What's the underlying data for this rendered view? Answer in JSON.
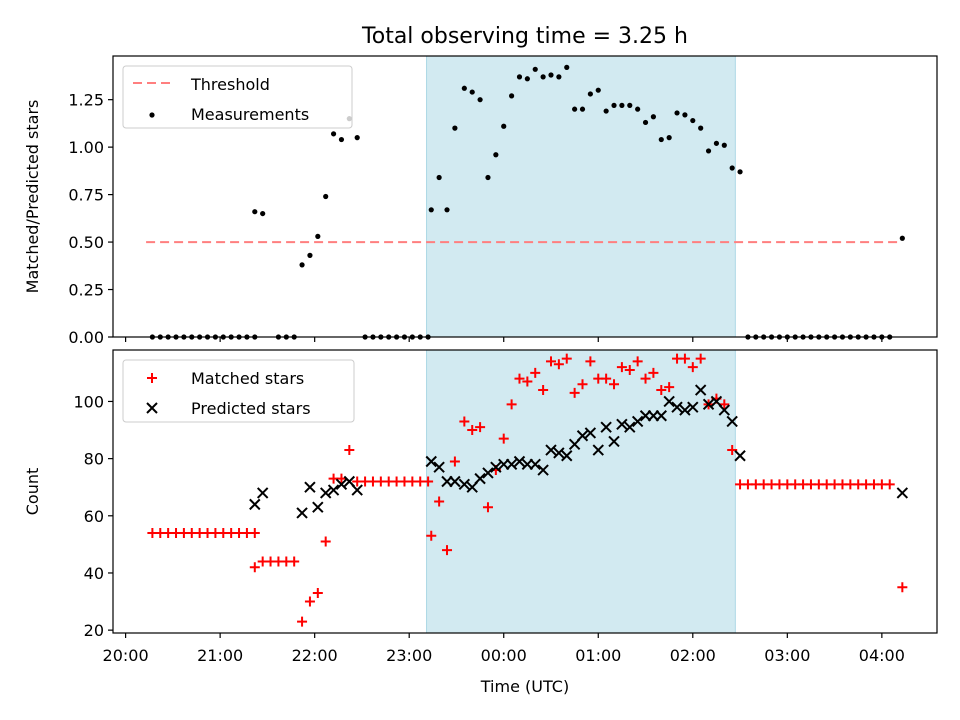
{
  "title": "Total observing time = 3.25 h",
  "chart_data": [
    {
      "type": "scatter",
      "ylabel": "Matched/Predicted stars",
      "xlim": [
        "20:00",
        "04:30"
      ],
      "ylim": [
        0,
        1.48
      ],
      "yticks": [
        0.0,
        0.25,
        0.5,
        0.75,
        1.0,
        1.25
      ],
      "ytick_labels": [
        "0.00",
        "0.25",
        "0.50",
        "0.75",
        "1.00",
        "1.25"
      ],
      "shaded_span": {
        "start": "23:11",
        "end": "02:27",
        "color": "#add8e6"
      },
      "legend": {
        "position": "upper-left",
        "entries": [
          "Threshold",
          "Measurements"
        ]
      },
      "series": [
        {
          "name": "Threshold",
          "style": "dashed-line",
          "color": "#ff7f7f",
          "y": 0.5,
          "x_range": [
            "20:13",
            "04:10"
          ]
        },
        {
          "name": "Measurements",
          "style": "dots",
          "color": "#000000",
          "points": [
            [
              "20:17",
              0
            ],
            [
              "20:22",
              0
            ],
            [
              "20:27",
              0
            ],
            [
              "20:32",
              0
            ],
            [
              "20:37",
              0
            ],
            [
              "20:42",
              0
            ],
            [
              "20:47",
              0
            ],
            [
              "20:52",
              0
            ],
            [
              "20:57",
              0
            ],
            [
              "21:02",
              0
            ],
            [
              "21:07",
              0
            ],
            [
              "21:12",
              0
            ],
            [
              "21:17",
              0
            ],
            [
              "21:22",
              0
            ],
            [
              "21:22",
              0.66
            ],
            [
              "21:27",
              0.65
            ],
            [
              "21:37",
              0
            ],
            [
              "21:42",
              0
            ],
            [
              "21:47",
              0
            ],
            [
              "21:52",
              0.38
            ],
            [
              "21:57",
              0.43
            ],
            [
              "22:02",
              0.53
            ],
            [
              "22:07",
              0.74
            ],
            [
              "22:12",
              1.07
            ],
            [
              "22:17",
              1.04
            ],
            [
              "22:22",
              1.15
            ],
            [
              "22:27",
              1.05
            ],
            [
              "22:32",
              0
            ],
            [
              "22:37",
              0
            ],
            [
              "22:42",
              0
            ],
            [
              "22:47",
              0
            ],
            [
              "22:52",
              0
            ],
            [
              "22:57",
              0
            ],
            [
              "23:02",
              0
            ],
            [
              "23:07",
              0
            ],
            [
              "23:12",
              0
            ],
            [
              "23:14",
              0.67
            ],
            [
              "23:19",
              0.84
            ],
            [
              "23:24",
              0.67
            ],
            [
              "23:29",
              1.1
            ],
            [
              "23:35",
              1.31
            ],
            [
              "23:40",
              1.29
            ],
            [
              "23:45",
              1.25
            ],
            [
              "23:50",
              0.84
            ],
            [
              "23:55",
              0.96
            ],
            [
              "00:00",
              1.11
            ],
            [
              "00:05",
              1.27
            ],
            [
              "00:10",
              1.37
            ],
            [
              "00:15",
              1.36
            ],
            [
              "00:20",
              1.41
            ],
            [
              "00:25",
              1.37
            ],
            [
              "00:30",
              1.38
            ],
            [
              "00:35",
              1.37
            ],
            [
              "00:40",
              1.42
            ],
            [
              "00:45",
              1.2
            ],
            [
              "00:50",
              1.2
            ],
            [
              "00:55",
              1.28
            ],
            [
              "01:00",
              1.3
            ],
            [
              "01:05",
              1.19
            ],
            [
              "01:10",
              1.22
            ],
            [
              "01:15",
              1.22
            ],
            [
              "01:20",
              1.22
            ],
            [
              "01:25",
              1.2
            ],
            [
              "01:30",
              1.13
            ],
            [
              "01:35",
              1.16
            ],
            [
              "01:40",
              1.04
            ],
            [
              "01:45",
              1.05
            ],
            [
              "01:50",
              1.18
            ],
            [
              "01:55",
              1.17
            ],
            [
              "02:00",
              1.14
            ],
            [
              "02:05",
              1.1
            ],
            [
              "02:10",
              0.98
            ],
            [
              "02:15",
              1.02
            ],
            [
              "02:20",
              1.01
            ],
            [
              "02:25",
              0.89
            ],
            [
              "02:30",
              0.87
            ],
            [
              "02:35",
              0
            ],
            [
              "02:40",
              0
            ],
            [
              "02:45",
              0
            ],
            [
              "02:50",
              0
            ],
            [
              "02:55",
              0
            ],
            [
              "03:00",
              0
            ],
            [
              "03:05",
              0
            ],
            [
              "03:10",
              0
            ],
            [
              "03:15",
              0
            ],
            [
              "03:20",
              0
            ],
            [
              "03:25",
              0
            ],
            [
              "03:30",
              0
            ],
            [
              "03:35",
              0
            ],
            [
              "03:40",
              0
            ],
            [
              "03:45",
              0
            ],
            [
              "03:50",
              0
            ],
            [
              "03:55",
              0
            ],
            [
              "04:00",
              0
            ],
            [
              "04:05",
              0
            ],
            [
              "04:13",
              0.52
            ]
          ]
        }
      ]
    },
    {
      "type": "scatter",
      "xlabel": "Time (UTC)",
      "ylabel": "Count",
      "xlim": [
        "20:00",
        "04:30"
      ],
      "ylim": [
        19,
        118
      ],
      "xticks": [
        "20:00",
        "21:00",
        "22:00",
        "23:00",
        "00:00",
        "01:00",
        "02:00",
        "03:00",
        "04:00"
      ],
      "yticks": [
        20,
        40,
        60,
        80,
        100
      ],
      "ytick_labels": [
        "20",
        "40",
        "60",
        "80",
        "100"
      ],
      "shaded_span": {
        "start": "23:11",
        "end": "02:27",
        "color": "#add8e6"
      },
      "legend": {
        "position": "upper-left",
        "entries": [
          "Matched stars",
          "Predicted stars"
        ]
      },
      "series": [
        {
          "name": "Matched stars",
          "marker": "plus",
          "color": "#ff0000",
          "points": [
            [
              "20:17",
              54
            ],
            [
              "20:22",
              54
            ],
            [
              "20:27",
              54
            ],
            [
              "20:32",
              54
            ],
            [
              "20:37",
              54
            ],
            [
              "20:42",
              54
            ],
            [
              "20:47",
              54
            ],
            [
              "20:52",
              54
            ],
            [
              "20:57",
              54
            ],
            [
              "21:02",
              54
            ],
            [
              "21:07",
              54
            ],
            [
              "21:12",
              54
            ],
            [
              "21:17",
              54
            ],
            [
              "21:22",
              54
            ],
            [
              "21:22",
              42
            ],
            [
              "21:27",
              44
            ],
            [
              "21:32",
              44
            ],
            [
              "21:37",
              44
            ],
            [
              "21:42",
              44
            ],
            [
              "21:47",
              44
            ],
            [
              "21:52",
              23
            ],
            [
              "21:57",
              30
            ],
            [
              "22:02",
              33
            ],
            [
              "22:07",
              51
            ],
            [
              "22:12",
              73
            ],
            [
              "22:17",
              73
            ],
            [
              "22:22",
              83
            ],
            [
              "22:27",
              72
            ],
            [
              "22:32",
              72
            ],
            [
              "22:37",
              72
            ],
            [
              "22:42",
              72
            ],
            [
              "22:47",
              72
            ],
            [
              "22:52",
              72
            ],
            [
              "22:57",
              72
            ],
            [
              "23:02",
              72
            ],
            [
              "23:07",
              72
            ],
            [
              "23:12",
              72
            ],
            [
              "23:14",
              53
            ],
            [
              "23:19",
              65
            ],
            [
              "23:24",
              48
            ],
            [
              "23:29",
              79
            ],
            [
              "23:35",
              93
            ],
            [
              "23:40",
              90
            ],
            [
              "23:45",
              91
            ],
            [
              "23:50",
              63
            ],
            [
              "23:55",
              76
            ],
            [
              "00:00",
              87
            ],
            [
              "00:05",
              99
            ],
            [
              "00:10",
              108
            ],
            [
              "00:15",
              107
            ],
            [
              "00:20",
              110
            ],
            [
              "00:25",
              104
            ],
            [
              "00:30",
              114
            ],
            [
              "00:35",
              113
            ],
            [
              "00:40",
              115
            ],
            [
              "00:45",
              103
            ],
            [
              "00:50",
              106
            ],
            [
              "00:55",
              114
            ],
            [
              "01:00",
              108
            ],
            [
              "01:05",
              108
            ],
            [
              "01:10",
              106
            ],
            [
              "01:15",
              112
            ],
            [
              "01:20",
              111
            ],
            [
              "01:25",
              114
            ],
            [
              "01:30",
              108
            ],
            [
              "01:35",
              110
            ],
            [
              "01:40",
              104
            ],
            [
              "01:45",
              105
            ],
            [
              "01:50",
              115
            ],
            [
              "01:55",
              115
            ],
            [
              "02:00",
              112
            ],
            [
              "02:05",
              115
            ],
            [
              "02:10",
              99
            ],
            [
              "02:15",
              101
            ],
            [
              "02:20",
              99
            ],
            [
              "02:25",
              83
            ],
            [
              "02:30",
              71
            ],
            [
              "02:35",
              71
            ],
            [
              "02:40",
              71
            ],
            [
              "02:45",
              71
            ],
            [
              "02:50",
              71
            ],
            [
              "02:55",
              71
            ],
            [
              "03:00",
              71
            ],
            [
              "03:05",
              71
            ],
            [
              "03:10",
              71
            ],
            [
              "03:15",
              71
            ],
            [
              "03:20",
              71
            ],
            [
              "03:25",
              71
            ],
            [
              "03:30",
              71
            ],
            [
              "03:35",
              71
            ],
            [
              "03:40",
              71
            ],
            [
              "03:45",
              71
            ],
            [
              "03:50",
              71
            ],
            [
              "03:55",
              71
            ],
            [
              "04:00",
              71
            ],
            [
              "04:05",
              71
            ],
            [
              "04:13",
              35
            ]
          ]
        },
        {
          "name": "Predicted stars",
          "marker": "x",
          "color": "#000000",
          "points": [
            [
              "21:22",
              64
            ],
            [
              "21:27",
              68
            ],
            [
              "21:52",
              61
            ],
            [
              "21:57",
              70
            ],
            [
              "22:02",
              63
            ],
            [
              "22:07",
              68
            ],
            [
              "22:12",
              69
            ],
            [
              "22:17",
              71
            ],
            [
              "22:22",
              72
            ],
            [
              "22:27",
              69
            ],
            [
              "23:14",
              79
            ],
            [
              "23:19",
              77
            ],
            [
              "23:24",
              72
            ],
            [
              "23:29",
              72
            ],
            [
              "23:35",
              71
            ],
            [
              "23:40",
              70
            ],
            [
              "23:45",
              73
            ],
            [
              "23:50",
              75
            ],
            [
              "23:55",
              77
            ],
            [
              "00:00",
              78
            ],
            [
              "00:05",
              78
            ],
            [
              "00:10",
              79
            ],
            [
              "00:15",
              78
            ],
            [
              "00:20",
              78
            ],
            [
              "00:25",
              76
            ],
            [
              "00:30",
              83
            ],
            [
              "00:35",
              82
            ],
            [
              "00:40",
              81
            ],
            [
              "00:45",
              85
            ],
            [
              "00:50",
              88
            ],
            [
              "00:55",
              89
            ],
            [
              "01:00",
              83
            ],
            [
              "01:05",
              91
            ],
            [
              "01:10",
              86
            ],
            [
              "01:15",
              92
            ],
            [
              "01:20",
              91
            ],
            [
              "01:25",
              93
            ],
            [
              "01:30",
              95
            ],
            [
              "01:35",
              95
            ],
            [
              "01:40",
              95
            ],
            [
              "01:45",
              100
            ],
            [
              "01:50",
              98
            ],
            [
              "01:55",
              97
            ],
            [
              "02:00",
              98
            ],
            [
              "02:05",
              104
            ],
            [
              "02:10",
              99
            ],
            [
              "02:15",
              100
            ],
            [
              "02:20",
              97
            ],
            [
              "02:25",
              93
            ],
            [
              "02:30",
              81
            ],
            [
              "04:13",
              68
            ]
          ]
        }
      ]
    }
  ]
}
